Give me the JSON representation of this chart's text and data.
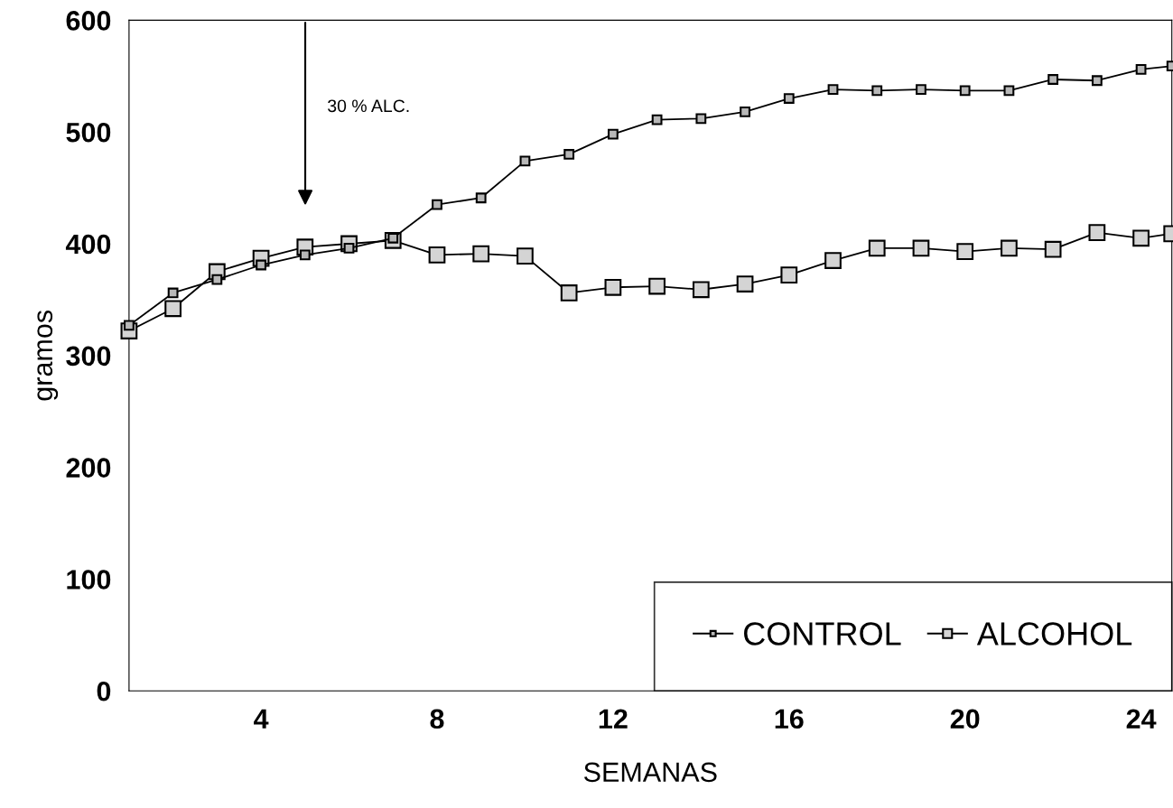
{
  "chart_data": {
    "type": "line",
    "xlabel": "SEMANAS",
    "ylabel": "gramos",
    "x": [
      1,
      2,
      3,
      4,
      5,
      6,
      7,
      8,
      9,
      10,
      11,
      12,
      13,
      14,
      15,
      16,
      17,
      18,
      19,
      20,
      21,
      22,
      23,
      24,
      24.7
    ],
    "series": [
      {
        "name": "CONTROL",
        "color": "#000000",
        "values": [
          327,
          356,
          368,
          381,
          390,
          396,
          405,
          435,
          441,
          474,
          480,
          498,
          511,
          512,
          518,
          530,
          538,
          537,
          538,
          537,
          537,
          547,
          546,
          556,
          559
        ]
      },
      {
        "name": "ALCOHOL",
        "color": "#000000",
        "values": [
          322,
          342,
          375,
          387,
          397,
          400,
          403,
          390,
          391,
          389,
          356,
          361,
          362,
          359,
          364,
          372,
          385,
          396,
          396,
          393,
          396,
          395,
          410,
          405,
          409
        ]
      }
    ],
    "xlim": [
      1,
      24.7
    ],
    "xticks": [
      4,
      8,
      12,
      16,
      20,
      24
    ],
    "ylim": [
      0,
      600
    ],
    "yticks": [
      0,
      100,
      200,
      300,
      400,
      500,
      600
    ],
    "annotations": [
      "30 % ALC."
    ],
    "marker": "square",
    "line_style": "solid",
    "legend": "bottom right",
    "grid": false
  }
}
